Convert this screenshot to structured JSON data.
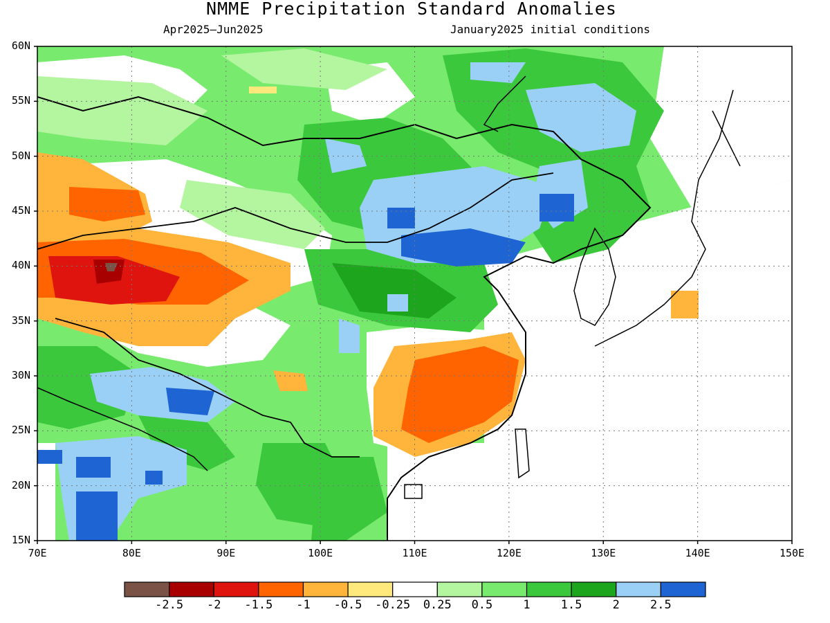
{
  "title": "NMME Precipitation Standard Anomalies",
  "subtitle_left": "Apr2025–Jun2025",
  "subtitle_right": "January2025 initial conditions",
  "lat_ticks": [
    "60N",
    "55N",
    "50N",
    "45N",
    "40N",
    "35N",
    "30N",
    "25N",
    "20N",
    "15N"
  ],
  "lon_ticks": [
    "70E",
    "80E",
    "90E",
    "100E",
    "110E",
    "120E",
    "130E",
    "140E",
    "150E"
  ],
  "colorbar": {
    "colors": [
      "#7a5346",
      "#a80000",
      "#e0140f",
      "#ff6400",
      "#ffb43c",
      "#ffe87c",
      "#ffffff",
      "#b4f5a0",
      "#78eb6e",
      "#3cc83c",
      "#1ea51e",
      "#9ad0f5",
      "#1e64d2"
    ],
    "labels": [
      "-2.5",
      "-2",
      "-1.5",
      "-1",
      "-0.5",
      "-0.25",
      "0.25",
      "0.5",
      "1",
      "1.5",
      "2",
      "2.5"
    ]
  },
  "map": {
    "lon_range": [
      70,
      150
    ],
    "lat_range": [
      15,
      60
    ],
    "background_color": "#78eb6e",
    "grid": true
  }
}
